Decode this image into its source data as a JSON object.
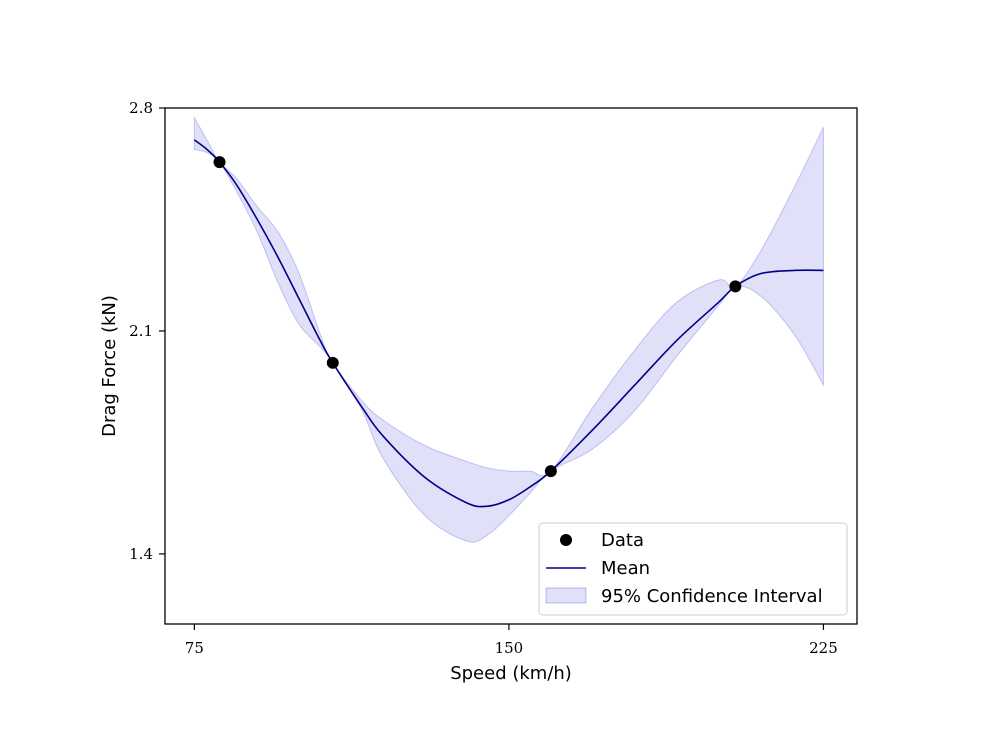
{
  "chart_data": {
    "type": "line",
    "xlabel": "Speed (km/h)",
    "ylabel": "Drag Force (kN)",
    "xlim": [
      68,
      233
    ],
    "ylim": [
      1.18,
      2.8
    ],
    "xticks": [
      75,
      150,
      225
    ],
    "yticks": [
      1.4,
      2.1,
      2.8
    ],
    "xtick_labels": [
      "75",
      "150",
      "225"
    ],
    "ytick_labels": [
      "1.4",
      "2.1",
      "2.8"
    ],
    "grid": false,
    "legend_position": "bottom-right",
    "series": [
      {
        "name": "Data",
        "kind": "scatter",
        "color": "#000000",
        "x": [
          81,
          108,
          160,
          204
        ],
        "y": [
          2.63,
          2.0,
          1.66,
          2.24
        ]
      },
      {
        "name": "Mean",
        "kind": "line",
        "color": "#00008b",
        "x": [
          75,
          78,
          81,
          85,
          90,
          95,
          100,
          105,
          108,
          115,
          120,
          130,
          140,
          145,
          150,
          155,
          160,
          170,
          180,
          190,
          200,
          204,
          210,
          218,
          225
        ],
        "y": [
          2.7,
          2.67,
          2.63,
          2.56,
          2.45,
          2.33,
          2.2,
          2.07,
          2.0,
          1.86,
          1.77,
          1.64,
          1.56,
          1.55,
          1.57,
          1.61,
          1.66,
          1.79,
          1.93,
          2.07,
          2.19,
          2.24,
          2.28,
          2.29,
          2.29
        ]
      },
      {
        "name": "95% Confidence Interval",
        "kind": "band",
        "color": "#0000cd",
        "x": [
          75,
          78,
          81,
          85,
          90,
          95,
          100,
          105,
          108,
          115,
          120,
          130,
          140,
          145,
          150,
          155,
          160,
          170,
          180,
          190,
          200,
          204,
          210,
          218,
          225
        ],
        "lower": [
          2.67,
          2.66,
          2.63,
          2.54,
          2.41,
          2.25,
          2.12,
          2.05,
          2.0,
          1.85,
          1.7,
          1.52,
          1.44,
          1.46,
          1.52,
          1.59,
          1.66,
          1.73,
          1.85,
          2.02,
          2.18,
          2.24,
          2.21,
          2.09,
          1.93
        ],
        "upper": [
          2.77,
          2.7,
          2.63,
          2.58,
          2.49,
          2.41,
          2.28,
          2.09,
          2.0,
          1.88,
          1.82,
          1.74,
          1.69,
          1.67,
          1.66,
          1.66,
          1.66,
          1.86,
          2.04,
          2.19,
          2.26,
          2.24,
          2.35,
          2.55,
          2.74
        ]
      }
    ]
  }
}
